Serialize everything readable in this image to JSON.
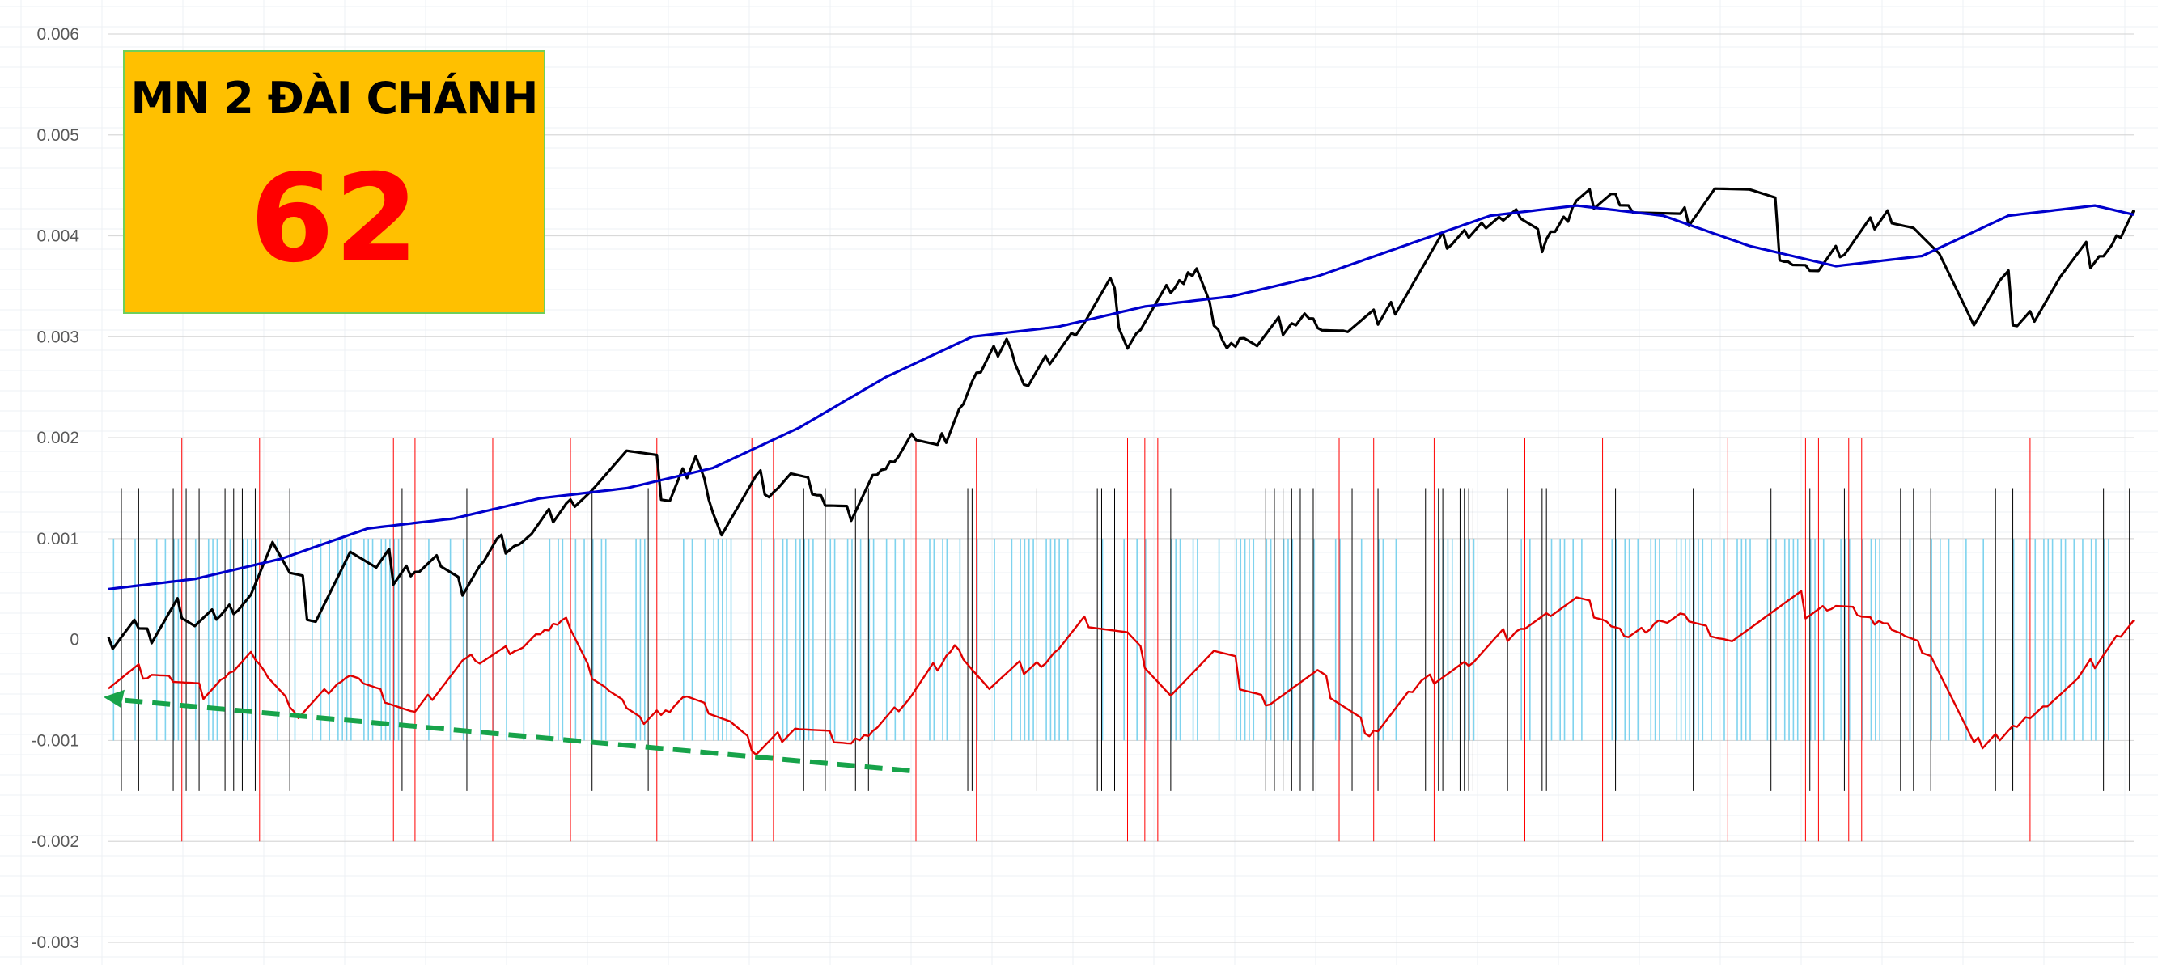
{
  "title_box": {
    "title": "MN 2 ĐÀI CHÁNH",
    "number": "62",
    "background": "#FFC000",
    "number_color": "#FF0000"
  },
  "chart_data": {
    "type": "line",
    "yticks": [
      "0.006",
      "0.005",
      "0.004",
      "0.003",
      "0.002",
      "0.001",
      "0",
      "-0.001",
      "-0.002",
      "-0.003"
    ],
    "ylim": [
      -0.003,
      0.006
    ],
    "n_points": 470,
    "grid": true,
    "series": [
      {
        "color": "#000000",
        "anchors": [
          [
            0,
            0
          ],
          [
            6,
            0.0002
          ],
          [
            10,
            0.0001
          ],
          [
            16,
            0.0004
          ],
          [
            20,
            0.0002
          ],
          [
            26,
            0.0003
          ],
          [
            33,
            0.0005
          ],
          [
            38,
            0.0009
          ],
          [
            42,
            0.0005
          ],
          [
            48,
            0.0003
          ],
          [
            56,
            0.0008
          ],
          [
            62,
            0.0005
          ],
          [
            70,
            0.0008
          ],
          [
            76,
            0.0009
          ],
          [
            82,
            0.0006
          ],
          [
            90,
            0.001
          ],
          [
            98,
            0.0011
          ],
          [
            106,
            0.0014
          ],
          [
            112,
            0.0015
          ],
          [
            120,
            0.0017
          ],
          [
            130,
            0.0014
          ],
          [
            136,
            0.0019
          ],
          [
            142,
            0.0011
          ],
          [
            150,
            0.0015
          ],
          [
            158,
            0.0017
          ],
          [
            164,
            0.0015
          ],
          [
            172,
            0.0013
          ],
          [
            178,
            0.0017
          ],
          [
            186,
            0.0021
          ],
          [
            192,
            0.0019
          ],
          [
            200,
            0.0026
          ],
          [
            208,
            0.0031
          ],
          [
            212,
            0.0026
          ],
          [
            218,
            0.0029
          ],
          [
            226,
            0.0032
          ],
          [
            232,
            0.0035
          ],
          [
            236,
            0.003
          ],
          [
            242,
            0.0033
          ],
          [
            248,
            0.0036
          ],
          [
            252,
            0.0038
          ],
          [
            258,
            0.003
          ],
          [
            262,
            0.0031
          ],
          [
            266,
            0.0029
          ],
          [
            272,
            0.0031
          ],
          [
            278,
            0.0033
          ],
          [
            286,
            0.0031
          ],
          [
            294,
            0.0032
          ],
          [
            302,
            0.0036
          ],
          [
            310,
            0.004
          ],
          [
            318,
            0.0042
          ],
          [
            326,
            0.0043
          ],
          [
            332,
            0.004
          ],
          [
            340,
            0.0044
          ],
          [
            348,
            0.0045
          ],
          [
            356,
            0.0043
          ],
          [
            364,
            0.0041
          ],
          [
            372,
            0.0044
          ],
          [
            380,
            0.0042
          ],
          [
            388,
            0.0039
          ],
          [
            396,
            0.0037
          ],
          [
            404,
            0.004
          ],
          [
            412,
            0.0043
          ],
          [
            418,
            0.0041
          ],
          [
            424,
            0.0037
          ],
          [
            432,
            0.0028
          ],
          [
            438,
            0.0031
          ],
          [
            446,
            0.0033
          ],
          [
            452,
            0.0036
          ],
          [
            458,
            0.0038
          ],
          [
            464,
            0.004
          ],
          [
            470,
            0.0044
          ]
        ],
        "noise": 0.0002
      },
      {
        "color": "#0000CC",
        "anchors": [
          [
            0,
            0.0005
          ],
          [
            20,
            0.0006
          ],
          [
            40,
            0.0008
          ],
          [
            60,
            0.0011
          ],
          [
            80,
            0.0012
          ],
          [
            100,
            0.0014
          ],
          [
            120,
            0.0015
          ],
          [
            140,
            0.0017
          ],
          [
            160,
            0.0021
          ],
          [
            180,
            0.0026
          ],
          [
            200,
            0.003
          ],
          [
            220,
            0.0031
          ],
          [
            240,
            0.0033
          ],
          [
            260,
            0.0034
          ],
          [
            280,
            0.0036
          ],
          [
            300,
            0.0039
          ],
          [
            320,
            0.0042
          ],
          [
            340,
            0.0043
          ],
          [
            360,
            0.0042
          ],
          [
            380,
            0.0039
          ],
          [
            400,
            0.0037
          ],
          [
            420,
            0.0038
          ],
          [
            440,
            0.0042
          ],
          [
            460,
            0.0043
          ],
          [
            470,
            0.0042
          ]
        ],
        "noise": 0
      },
      {
        "color": "#E00000",
        "anchors": [
          [
            0,
            -0.0005
          ],
          [
            10,
            -0.0003
          ],
          [
            22,
            -0.0005
          ],
          [
            34,
            -0.0001
          ],
          [
            44,
            -0.0007
          ],
          [
            56,
            -0.0003
          ],
          [
            70,
            -0.0007
          ],
          [
            82,
            -0.0002
          ],
          [
            96,
            0
          ],
          [
            106,
            0.0003
          ],
          [
            112,
            -0.0003
          ],
          [
            124,
            -0.0008
          ],
          [
            134,
            -0.0005
          ],
          [
            144,
            -0.0008
          ],
          [
            150,
            -0.0011
          ],
          [
            160,
            -0.0008
          ],
          [
            172,
            -0.001
          ],
          [
            186,
            -0.0005
          ],
          [
            196,
            0
          ],
          [
            204,
            -0.0005
          ],
          [
            216,
            -0.0002
          ],
          [
            226,
            0.0002
          ],
          [
            236,
            0
          ],
          [
            246,
            -0.0006
          ],
          [
            256,
            -0.0003
          ],
          [
            268,
            -0.0006
          ],
          [
            280,
            -0.0004
          ],
          [
            292,
            -0.0009
          ],
          [
            304,
            -0.0004
          ],
          [
            316,
            -0.0002
          ],
          [
            328,
            0.0002
          ],
          [
            340,
            0.0004
          ],
          [
            352,
            0.0001
          ],
          [
            364,
            0.0003
          ],
          [
            376,
            0
          ],
          [
            388,
            0.0002
          ],
          [
            400,
            0.0004
          ],
          [
            412,
            0.0002
          ],
          [
            422,
            -0.0001
          ],
          [
            432,
            -0.0011
          ],
          [
            444,
            -0.0007
          ],
          [
            456,
            -0.0004
          ],
          [
            466,
            0.0001
          ],
          [
            476,
            0.0005
          ]
        ],
        "noise": 0.00012
      }
    ],
    "vertical_markers": {
      "cyan": {
        "color": "#7FD3EE",
        "range": [
          -0.001,
          0.001
        ]
      },
      "black": {
        "color": "#000000",
        "range": [
          -0.0015,
          0.0015
        ]
      },
      "red": {
        "color": "#FF0000",
        "range": [
          -0.002,
          0.002
        ]
      }
    },
    "annotation": {
      "type": "dashed-arrow",
      "color": "#17A34A",
      "from": [
        120,
        -0.0013
      ],
      "to": [
        0,
        -0.00057
      ]
    }
  }
}
